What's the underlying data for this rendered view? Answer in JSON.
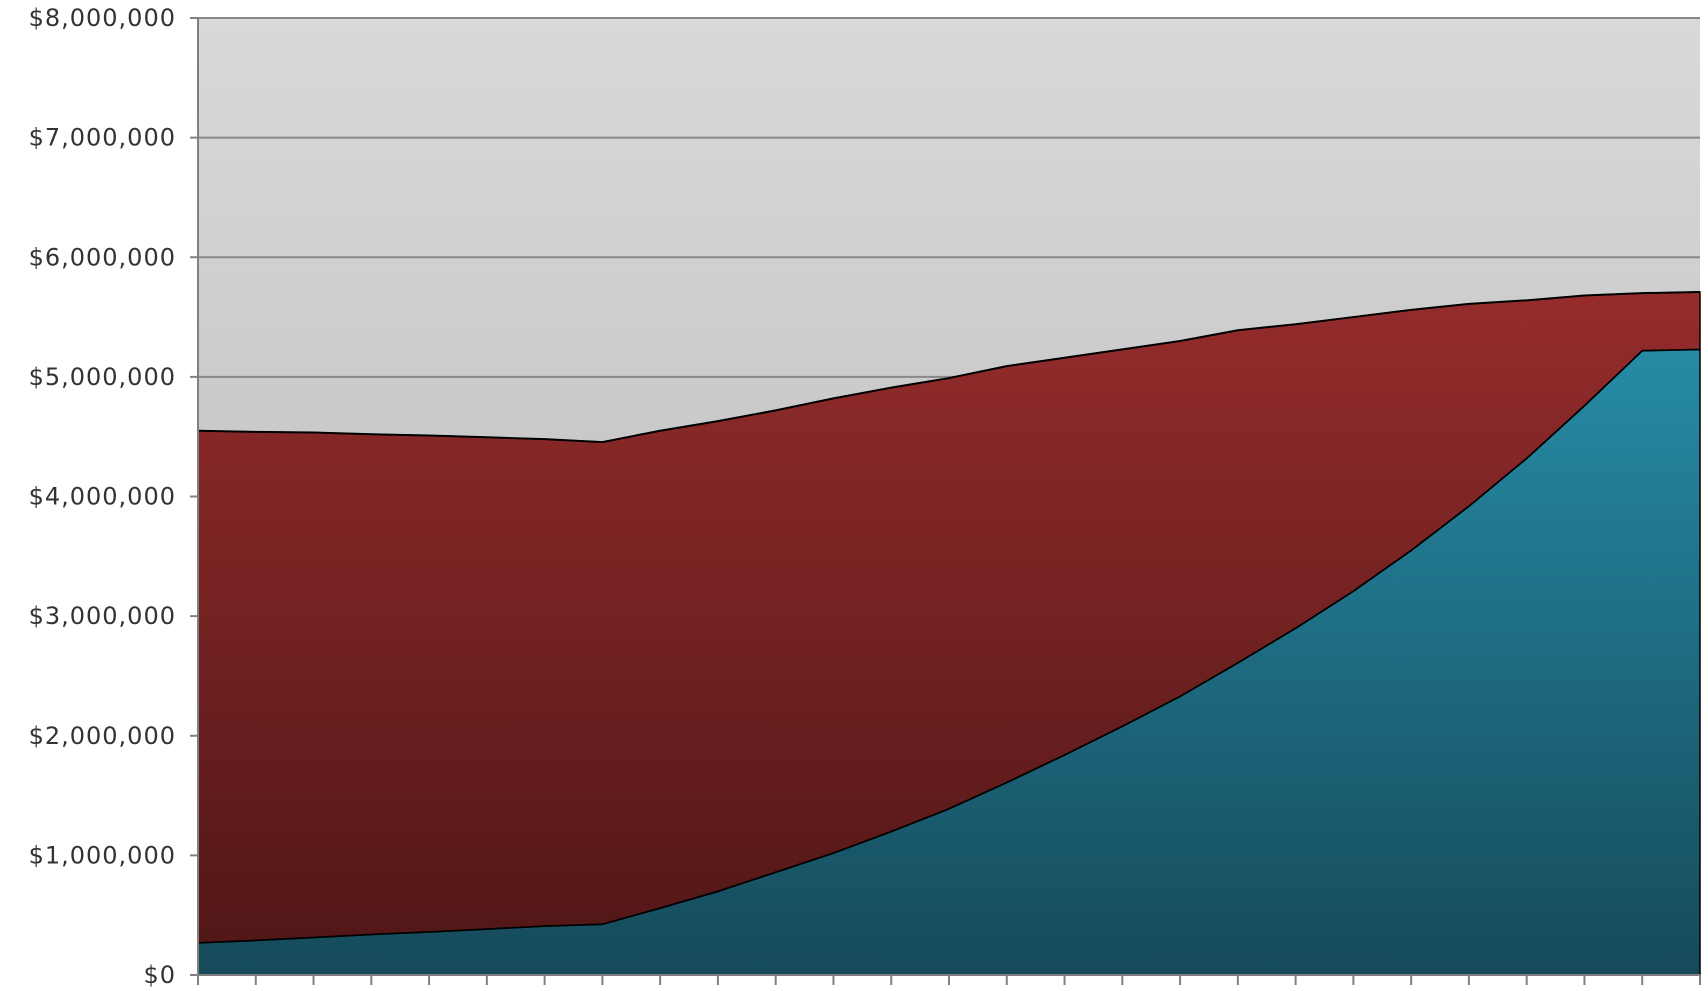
{
  "chart_data": {
    "type": "area",
    "stacked": true,
    "x": [
      0,
      1,
      2,
      3,
      4,
      5,
      6,
      7,
      8,
      9,
      10,
      11,
      12,
      13,
      14,
      15,
      16,
      17,
      18,
      19,
      20,
      21,
      22,
      23,
      24,
      25,
      26
    ],
    "series": [
      {
        "color": "#1e7a92",
        "values": [
          270000,
          290000,
          315000,
          340000,
          360000,
          385000,
          410000,
          425000,
          560000,
          700000,
          860000,
          1020000,
          1200000,
          1390000,
          1610000,
          1840000,
          2080000,
          2330000,
          2610000,
          2900000,
          3210000,
          3550000,
          3920000,
          4320000,
          4760000,
          5220000,
          5230000
        ]
      },
      {
        "color": "#8f2a2a",
        "values": [
          4280000,
          4250000,
          4220000,
          4180000,
          4150000,
          4110000,
          4070000,
          4030000,
          3990000,
          3930000,
          3860000,
          3800000,
          3710000,
          3600000,
          3480000,
          3320000,
          3150000,
          2970000,
          2780000,
          2540000,
          2290000,
          2010000,
          1690000,
          1320000,
          920000,
          480000,
          480000
        ]
      }
    ],
    "xlim": [
      0,
      26
    ],
    "ylim": [
      0,
      8000000
    ],
    "yticks": [
      0,
      1000000,
      2000000,
      3000000,
      4000000,
      5000000,
      6000000,
      7000000,
      8000000
    ],
    "ytick_labels": [
      "$0",
      "$1,000,000",
      "$2,000,000",
      "$3,000,000",
      "$4,000,000",
      "$5,000,000",
      "$6,000,000",
      "$7,000,000",
      "$8,000,000"
    ],
    "grid": true,
    "legend": "none",
    "title": "",
    "xlabel": "",
    "ylabel": "",
    "colors": {
      "background_top": "#d9d9d9",
      "background_bottom": "#b5b5b5",
      "gridline": "#888888",
      "outline": "#000000",
      "bottom_series_top": "#268ba6",
      "bottom_series_bottom": "#154a5a",
      "top_series_top": "#952c2c",
      "top_series_bottom": "#521717"
    }
  }
}
